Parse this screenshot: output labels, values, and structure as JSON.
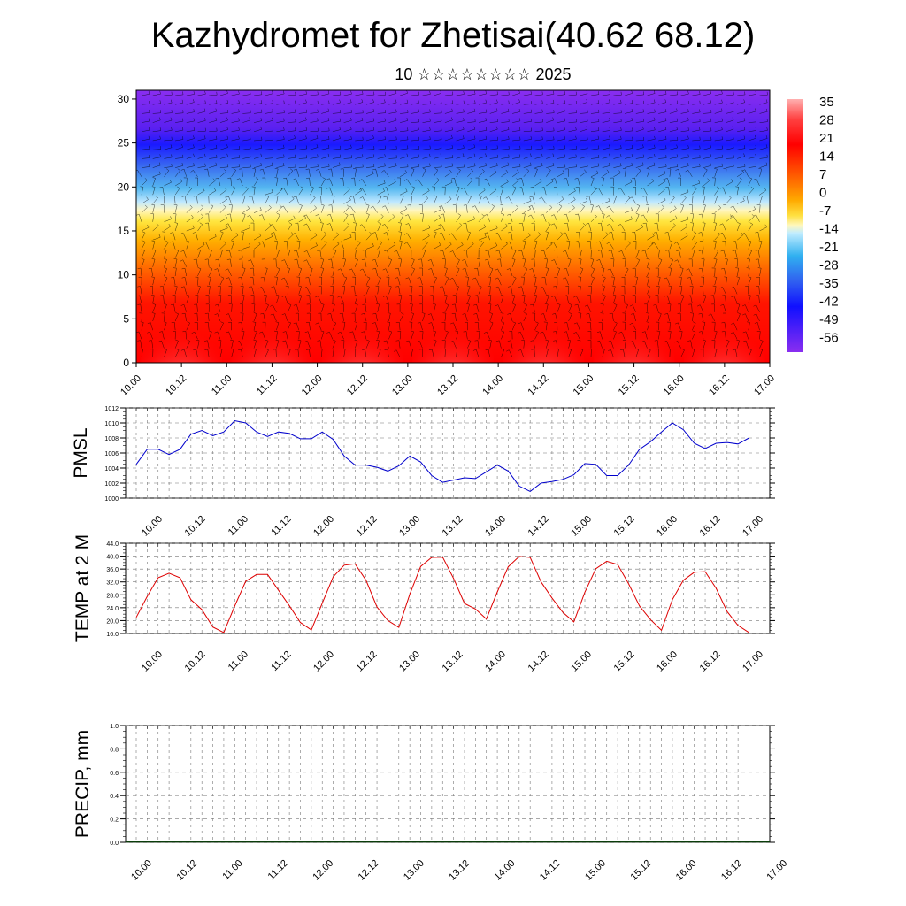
{
  "title": "Kazhydromet for Zhetisai(40.62 68.12)",
  "subtitle": "10 ☆☆☆☆☆☆☆☆ 2025",
  "time_ticks": [
    "10.00",
    "10.12",
    "11.00",
    "11.12",
    "12.00",
    "12.12",
    "13.00",
    "13.12",
    "14.00",
    "14.12",
    "15.00",
    "15.12",
    "16.00",
    "16.12",
    "17.00"
  ],
  "chart_data": [
    {
      "type": "heatmap",
      "id": "cross-section",
      "xlabel": "",
      "ylabel": "",
      "ylim": [
        0,
        31
      ],
      "y_ticks": [
        0,
        5,
        10,
        15,
        20,
        25,
        30
      ],
      "x_tick_labels": [
        "10.00",
        "10.12",
        "11.00",
        "11.12",
        "12.00",
        "12.12",
        "13.00",
        "13.12",
        "14.00",
        "14.12",
        "15.00",
        "15.12",
        "16.00",
        "16.12",
        "17.00"
      ],
      "colorbar": {
        "labels": [
          "35",
          "28",
          "21",
          "14",
          "7",
          "0",
          "-7",
          "-14",
          "-21",
          "-28",
          "-35",
          "-42",
          "-49",
          "-56"
        ],
        "range": [
          -63,
          42
        ]
      },
      "wind_barbs": true
    },
    {
      "type": "line",
      "id": "pmsl",
      "ylabel": "PMSL",
      "ylim": [
        1000,
        1012
      ],
      "y_tick_labels": [
        "1000",
        "1002",
        "1004",
        "1006",
        "1008",
        "1010",
        "1012"
      ],
      "x_tick_labels": [
        "10.00",
        "10.12",
        "11.00",
        "11.12",
        "12.00",
        "12.12",
        "13.00",
        "13.12",
        "14.00",
        "14.12",
        "15.00",
        "15.12",
        "16.00",
        "16.12",
        "17.00"
      ],
      "color": "#0000cc",
      "values": [
        1004.5,
        1006.5,
        1006.5,
        1005.8,
        1006.5,
        1008.5,
        1009.0,
        1008.3,
        1008.8,
        1010.3,
        1010.0,
        1008.8,
        1008.2,
        1008.8,
        1008.6,
        1007.9,
        1007.9,
        1008.8,
        1007.8,
        1005.6,
        1004.4,
        1004.4,
        1004.1,
        1003.6,
        1004.3,
        1005.6,
        1004.8,
        1003.0,
        1002.1,
        1002.4,
        1002.7,
        1002.6,
        1003.5,
        1004.4,
        1003.6,
        1001.6,
        1000.9,
        1002.0,
        1002.2,
        1002.5,
        1003.1,
        1004.6,
        1004.5,
        1003.0,
        1003.0,
        1004.4,
        1006.5,
        1007.5,
        1008.8,
        1010.0,
        1009.1,
        1007.3,
        1006.6,
        1007.3,
        1007.4,
        1007.2,
        1008.0
      ]
    },
    {
      "type": "line",
      "id": "temp2m",
      "ylabel": "TEMP at 2 M",
      "ylim": [
        16,
        44
      ],
      "y_tick_labels": [
        "16.0",
        "20.0",
        "24.0",
        "28.0",
        "32.0",
        "36.0",
        "40.0",
        "44.0"
      ],
      "x_tick_labels": [
        "10.00",
        "10.12",
        "11.00",
        "11.12",
        "12.00",
        "12.12",
        "13.00",
        "13.12",
        "14.00",
        "14.12",
        "15.00",
        "15.12",
        "16.00",
        "16.12",
        "17.00"
      ],
      "color": "#dd0000",
      "values": [
        21.0,
        27.5,
        33.3,
        34.7,
        33.3,
        26.5,
        23.4,
        18.0,
        16.3,
        24.5,
        32.2,
        34.3,
        34.3,
        29.4,
        24.6,
        19.4,
        17.1,
        25.4,
        33.6,
        37.2,
        37.6,
        32.5,
        24.2,
        20.0,
        17.9,
        28.2,
        36.8,
        39.6,
        39.7,
        33.1,
        25.3,
        23.6,
        20.5,
        28.9,
        36.7,
        39.9,
        39.6,
        32.0,
        27.0,
        22.5,
        19.6,
        28.8,
        36.1,
        38.4,
        37.4,
        31.4,
        24.5,
        20.3,
        17.0,
        26.5,
        32.5,
        35.0,
        35.2,
        30.0,
        22.8,
        18.5,
        16.3
      ]
    },
    {
      "type": "bar",
      "id": "precip",
      "ylabel": "PRECIP, mm",
      "ylim": [
        0,
        1
      ],
      "y_tick_labels": [
        "0.0",
        "0.2",
        "0.4",
        "0.6",
        "0.8",
        "1.0"
      ],
      "x_tick_labels": [
        "10.00",
        "10.12",
        "11.00",
        "11.12",
        "12.00",
        "12.12",
        "13.00",
        "13.12",
        "14.00",
        "14.12",
        "15.00",
        "15.12",
        "16.00",
        "16.12",
        "17.00"
      ],
      "values": [
        0,
        0,
        0,
        0,
        0,
        0,
        0,
        0,
        0,
        0,
        0,
        0,
        0,
        0,
        0,
        0,
        0,
        0,
        0,
        0,
        0,
        0,
        0,
        0,
        0,
        0,
        0,
        0,
        0,
        0,
        0,
        0,
        0,
        0,
        0,
        0,
        0,
        0,
        0,
        0,
        0,
        0,
        0,
        0,
        0,
        0,
        0,
        0,
        0,
        0,
        0,
        0,
        0,
        0,
        0,
        0,
        0
      ]
    }
  ]
}
